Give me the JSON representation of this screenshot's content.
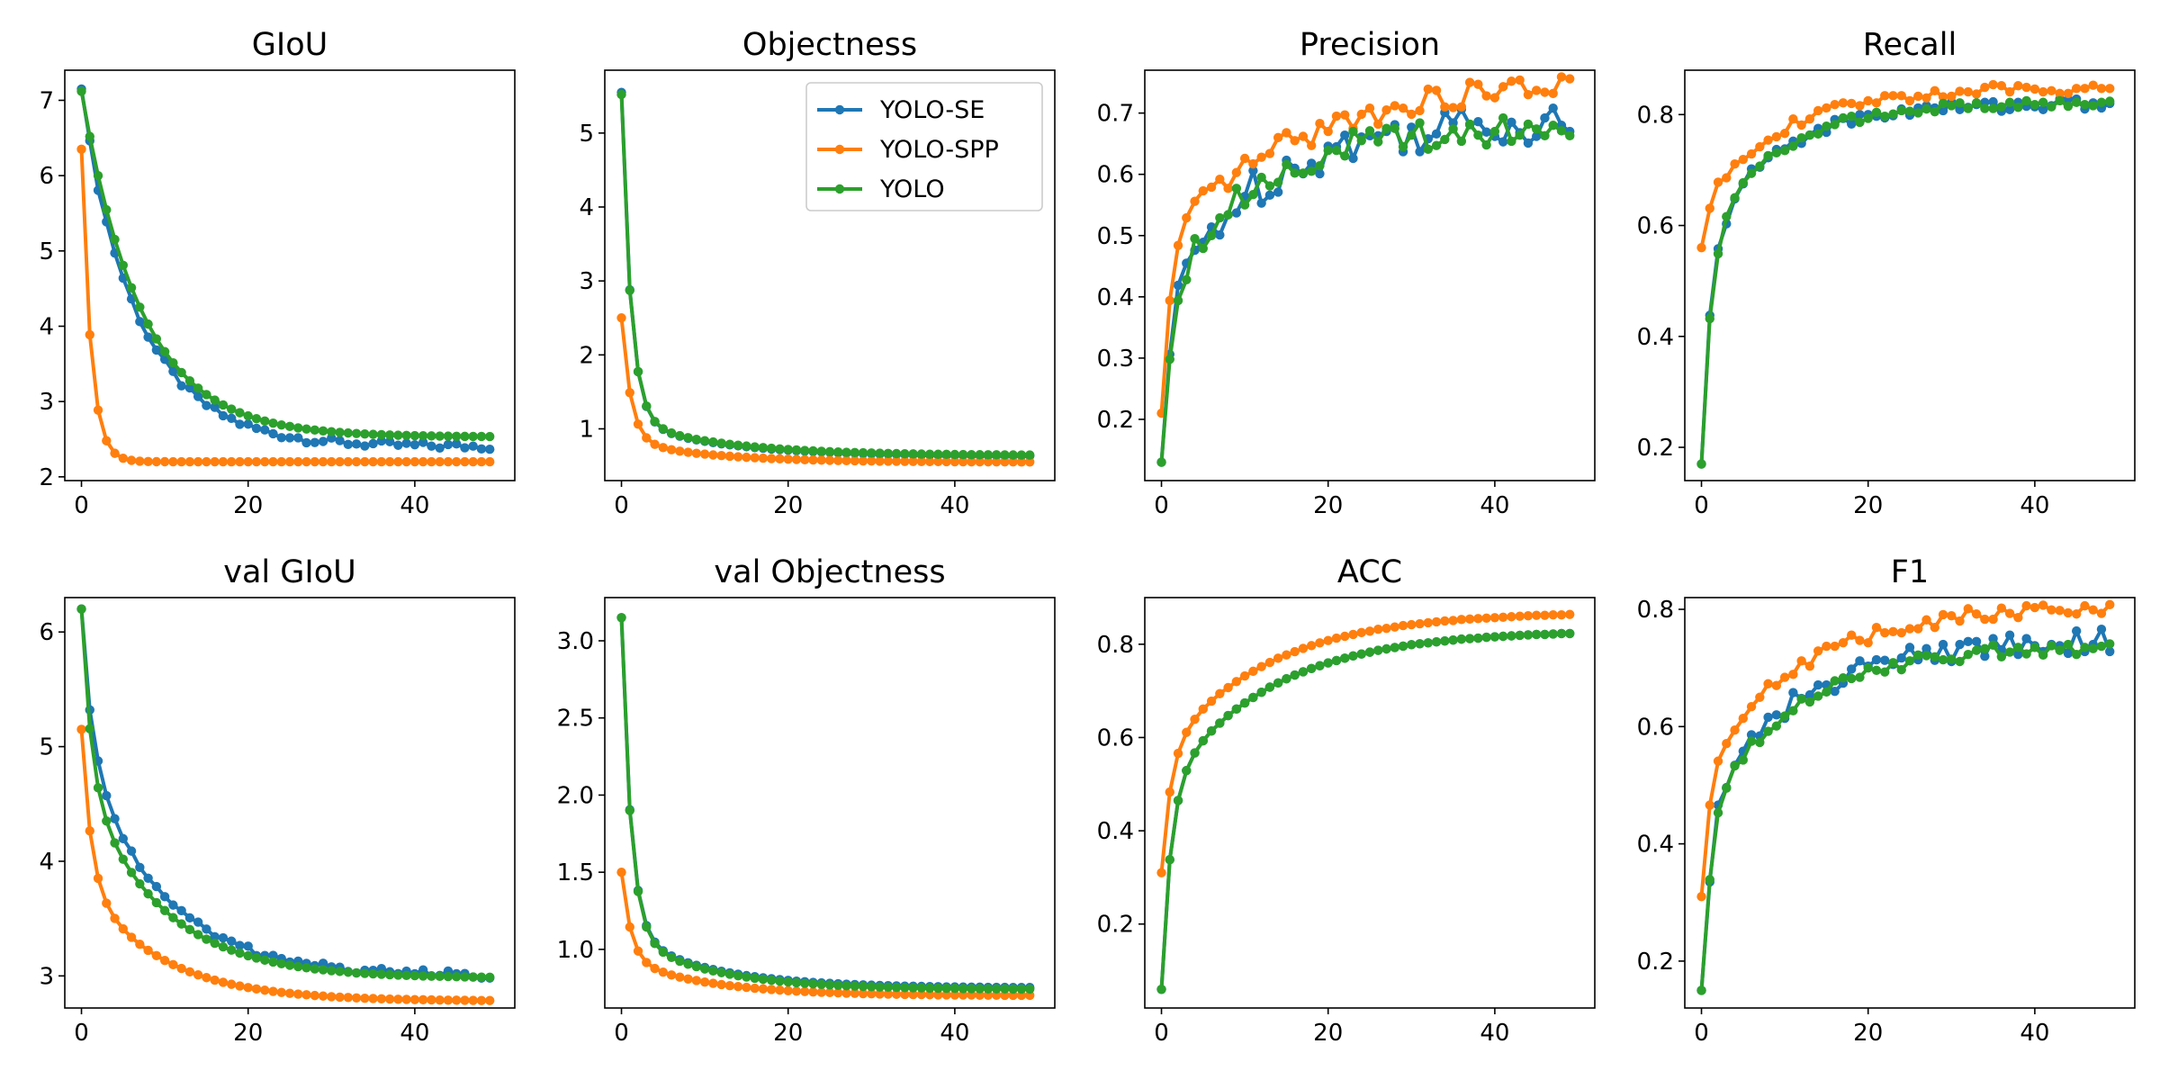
{
  "colors": {
    "YOLO-SE": "#1f77b4",
    "YOLO-SPP": "#ff7f0e",
    "YOLO": "#2ca02c"
  },
  "legend": {
    "location": "upper right",
    "panel": "Objectness",
    "entries": [
      "YOLO-SE",
      "YOLO-SPP",
      "YOLO"
    ]
  },
  "chart_data": [
    {
      "type": "line",
      "title": "GIoU",
      "xlabel": "",
      "ylabel": "",
      "xlim": [
        -2,
        52
      ],
      "ylim": [
        1.95,
        7.4
      ],
      "xticks": [
        0,
        20,
        40
      ],
      "yticks": [
        2,
        3,
        4,
        5,
        6,
        7
      ],
      "grid": false,
      "markers": true,
      "series_spec": {
        "YOLO-SE": {
          "start": 7.15,
          "end": 2.4,
          "rate": 0.14,
          "fast": 0.05,
          "noise": 0.05
        },
        "YOLO-SPP": {
          "start": 6.35,
          "end": 2.2,
          "rate": 0.17,
          "fast": 1.0,
          "noise": 0.0
        },
        "YOLO": {
          "start": 7.12,
          "end": 2.53,
          "rate": 0.14,
          "fast": 0.0,
          "noise": 0.0
        }
      }
    },
    {
      "type": "line",
      "title": "Objectness",
      "xlabel": "",
      "ylabel": "",
      "xlim": [
        -2,
        52
      ],
      "ylim": [
        0.3,
        5.85
      ],
      "xticks": [
        0,
        20,
        40
      ],
      "yticks": [
        1,
        2,
        3,
        4,
        5
      ],
      "grid": false,
      "markers": true,
      "series_spec": {
        "YOLO-SE": {
          "start": 5.55,
          "end": 0.63,
          "rate": 0.09,
          "fast": 0.9,
          "noise": 0.0
        },
        "YOLO-SPP": {
          "start": 2.5,
          "end": 0.55,
          "rate": 0.1,
          "fast": 0.85,
          "noise": 0.0
        },
        "YOLO": {
          "start": 5.52,
          "end": 0.64,
          "rate": 0.09,
          "fast": 0.9,
          "noise": 0.0
        }
      }
    },
    {
      "type": "line",
      "title": "Precision",
      "xlabel": "",
      "ylabel": "",
      "xlim": [
        -2,
        52
      ],
      "ylim": [
        0.1,
        0.77
      ],
      "xticks": [
        0,
        20,
        40
      ],
      "yticks": [
        0.2,
        0.3,
        0.4,
        0.5,
        0.6,
        0.7
      ],
      "grid": false,
      "markers": true,
      "series_spec": {
        "YOLO-SE": {
          "start": 0.13,
          "end": 0.69,
          "rate": 0.09,
          "fast": 0.45,
          "noise": 0.035
        },
        "YOLO-SPP": {
          "start": 0.21,
          "end": 0.76,
          "rate": 0.06,
          "fast": 0.5,
          "noise": 0.02
        },
        "YOLO": {
          "start": 0.13,
          "end": 0.68,
          "rate": 0.09,
          "fast": 0.5,
          "noise": 0.025
        }
      }
    },
    {
      "type": "line",
      "title": "Recall",
      "xlabel": "",
      "ylabel": "",
      "xlim": [
        -2,
        52
      ],
      "ylim": [
        0.14,
        0.88
      ],
      "xticks": [
        0,
        20,
        40
      ],
      "yticks": [
        0.2,
        0.4,
        0.6,
        0.8
      ],
      "grid": false,
      "markers": true,
      "series_spec": {
        "YOLO-SE": {
          "start": 0.17,
          "end": 0.82,
          "rate": 0.12,
          "fast": 0.6,
          "noise": 0.012
        },
        "YOLO-SPP": {
          "start": 0.56,
          "end": 0.85,
          "rate": 0.1,
          "fast": 0.3,
          "noise": 0.01
        },
        "YOLO": {
          "start": 0.17,
          "end": 0.82,
          "rate": 0.12,
          "fast": 0.6,
          "noise": 0.008
        }
      }
    },
    {
      "type": "line",
      "title": "val GIoU",
      "xlabel": "",
      "ylabel": "",
      "xlim": [
        -2,
        52
      ],
      "ylim": [
        2.72,
        6.3
      ],
      "xticks": [
        0,
        20,
        40
      ],
      "yticks": [
        3,
        4,
        5,
        6
      ],
      "grid": false,
      "markers": true,
      "series_spec": {
        "YOLO-SE": {
          "start": 6.2,
          "end": 3.0,
          "rate": 0.11,
          "fast": 0.35,
          "noise": 0.03
        },
        "YOLO-SPP": {
          "start": 5.15,
          "end": 2.78,
          "rate": 0.11,
          "fast": 0.55,
          "noise": 0.0
        },
        "YOLO": {
          "start": 6.2,
          "end": 2.98,
          "rate": 0.11,
          "fast": 0.45,
          "noise": 0.0
        }
      }
    },
    {
      "type": "line",
      "title": "val Objectness",
      "xlabel": "",
      "ylabel": "",
      "xlim": [
        -2,
        52
      ],
      "ylim": [
        0.62,
        3.28
      ],
      "xticks": [
        0,
        20,
        40
      ],
      "yticks": [
        1.0,
        1.5,
        2.0,
        2.5,
        3.0
      ],
      "grid": false,
      "markers": true,
      "series_spec": {
        "YOLO-SE": {
          "start": 3.15,
          "end": 0.75,
          "rate": 0.1,
          "fast": 0.85,
          "noise": 0.0
        },
        "YOLO-SPP": {
          "start": 1.5,
          "end": 0.7,
          "rate": 0.1,
          "fast": 0.7,
          "noise": 0.0
        },
        "YOLO": {
          "start": 3.15,
          "end": 0.74,
          "rate": 0.1,
          "fast": 0.85,
          "noise": 0.0
        }
      }
    },
    {
      "type": "line",
      "title": "ACC",
      "xlabel": "",
      "ylabel": "",
      "xlim": [
        -2,
        52
      ],
      "ylim": [
        0.02,
        0.9
      ],
      "xticks": [
        0,
        20,
        40
      ],
      "yticks": [
        0.2,
        0.4,
        0.6,
        0.8
      ],
      "grid": false,
      "markers": true,
      "series_spec": {
        "YOLO-SE": {
          "start": 0.06,
          "end": 0.83,
          "rate": 0.08,
          "fast": 0.55,
          "noise": 0.0
        },
        "YOLO-SPP": {
          "start": 0.31,
          "end": 0.87,
          "rate": 0.08,
          "fast": 0.45,
          "noise": 0.0
        },
        "YOLO": {
          "start": 0.06,
          "end": 0.83,
          "rate": 0.08,
          "fast": 0.55,
          "noise": 0.0
        }
      }
    },
    {
      "type": "line",
      "title": "F1",
      "xlabel": "",
      "ylabel": "",
      "xlim": [
        -2,
        52
      ],
      "ylim": [
        0.12,
        0.82
      ],
      "xticks": [
        0,
        20,
        40
      ],
      "yticks": [
        0.2,
        0.4,
        0.6,
        0.8
      ],
      "grid": false,
      "markers": true,
      "series_spec": {
        "YOLO-SE": {
          "start": 0.15,
          "end": 0.75,
          "rate": 0.09,
          "fast": 0.5,
          "noise": 0.02
        },
        "YOLO-SPP": {
          "start": 0.31,
          "end": 0.81,
          "rate": 0.08,
          "fast": 0.45,
          "noise": 0.012
        },
        "YOLO": {
          "start": 0.15,
          "end": 0.74,
          "rate": 0.09,
          "fast": 0.5,
          "noise": 0.012
        }
      }
    }
  ]
}
